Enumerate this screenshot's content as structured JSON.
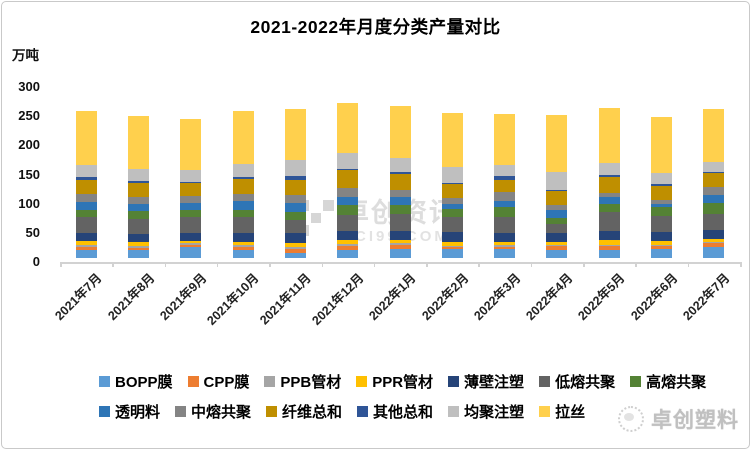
{
  "title": "2021-2022年月度分类产量对比",
  "y_axis": {
    "unit": "万吨",
    "ticks": [
      300,
      250,
      200,
      150,
      100,
      50,
      0
    ]
  },
  "watermark": {
    "line1": "卓创资讯",
    "line2": "SCI99.COM"
  },
  "brand": {
    "name": "卓创塑料"
  },
  "chart_data": {
    "type": "bar",
    "stacked": true,
    "title": "2021-2022年月度分类产量对比",
    "xlabel": "",
    "ylabel": "万吨",
    "ylim": [
      0,
      300
    ],
    "grid": false,
    "legend_position": "bottom",
    "categories": [
      "2021年7月",
      "2021年8月",
      "2021年9月",
      "2021年10月",
      "2021年11月",
      "2021年12月",
      "2022年1月",
      "2022年2月",
      "2022年3月",
      "2022年4月",
      "2022年5月",
      "2022年6月",
      "2022年7月"
    ],
    "series": [
      {
        "name": "BOPP膜",
        "color": "#5B9BD5",
        "values": [
          14,
          13,
          19,
          13,
          9,
          13,
          15,
          15,
          15,
          13,
          14,
          15,
          19
        ]
      },
      {
        "name": "CPP膜",
        "color": "#ED7D31",
        "values": [
          5,
          5,
          4,
          6,
          7,
          8,
          7,
          4,
          4,
          7,
          6,
          6,
          6
        ]
      },
      {
        "name": "PPB管材",
        "color": "#A5A5A5",
        "values": [
          3,
          3,
          2,
          3,
          3,
          3,
          3,
          2,
          3,
          2,
          3,
          2,
          2
        ]
      },
      {
        "name": "PPR管材",
        "color": "#FFC000",
        "values": [
          7,
          6,
          5,
          6,
          6,
          6,
          6,
          7,
          6,
          6,
          7,
          6,
          6
        ]
      },
      {
        "name": "薄壁注塑",
        "color": "#264478",
        "values": [
          13,
          14,
          13,
          15,
          17,
          16,
          16,
          16,
          15,
          15,
          16,
          15,
          15
        ]
      },
      {
        "name": "低熔共聚",
        "color": "#636363",
        "values": [
          29,
          26,
          27,
          28,
          23,
          27,
          29,
          26,
          28,
          15,
          33,
          28,
          28
        ]
      },
      {
        "name": "高熔共聚",
        "color": "#548235",
        "values": [
          11,
          13,
          12,
          12,
          14,
          17,
          15,
          14,
          17,
          11,
          14,
          15,
          19
        ]
      },
      {
        "name": "透明料",
        "color": "#2E75B6",
        "values": [
          14,
          12,
          13,
          14,
          16,
          15,
          13,
          9,
          10,
          13,
          11,
          5,
          13
        ]
      },
      {
        "name": "中熔共聚",
        "color": "#848484",
        "values": [
          14,
          12,
          11,
          13,
          13,
          15,
          13,
          9,
          16,
          8,
          7,
          8,
          14
        ]
      },
      {
        "name": "纤维总和",
        "color": "#BF8F00",
        "values": [
          24,
          25,
          22,
          26,
          26,
          30,
          27,
          25,
          20,
          25,
          28,
          24,
          23
        ]
      },
      {
        "name": "其他总和",
        "color": "#2F5597",
        "values": [
          5,
          3,
          3,
          3,
          6,
          2,
          3,
          2,
          6,
          2,
          3,
          2,
          2
        ]
      },
      {
        "name": "均聚注塑",
        "color": "#BFBFBF",
        "values": [
          20,
          20,
          19,
          22,
          27,
          27,
          24,
          27,
          19,
          30,
          21,
          20,
          18
        ]
      },
      {
        "name": "拉丝",
        "color": "#FFD04D",
        "values": [
          93,
          91,
          88,
          90,
          88,
          87,
          90,
          92,
          88,
          98,
          93,
          96,
          90
        ]
      }
    ]
  }
}
